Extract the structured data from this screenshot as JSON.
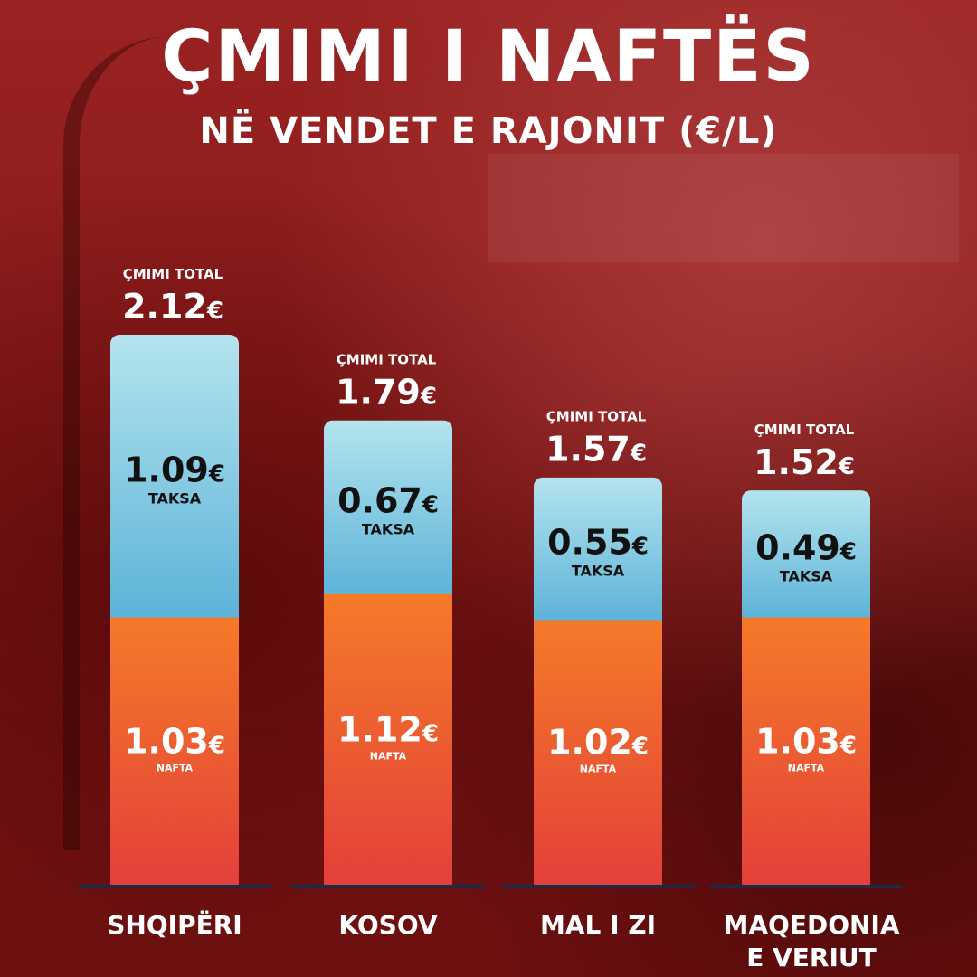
{
  "header": {
    "title": "ÇMIMI I NAFTËS",
    "subtitle": "NË VENDET E RAJONIT (€/L)"
  },
  "labels": {
    "total": "ÇMIMI TOTAL",
    "tax": "TAKSA",
    "fuel": "NAFTA",
    "currency": "€"
  },
  "colors": {
    "tax_top": "#b4e4ee",
    "tax_bottom": "#5cb3d8",
    "fuel_top": "#f57a28",
    "fuel_bottom": "#e3403a",
    "baseline": "#1c2a4a"
  },
  "chart_data": {
    "type": "bar",
    "stacked": true,
    "categories": [
      [
        "SHQIPËRI"
      ],
      [
        "KOSOV"
      ],
      [
        "MAL I ZI"
      ],
      [
        "MAQEDONIA",
        "E VERIUT"
      ]
    ],
    "series": [
      {
        "name": "NAFTA",
        "values": [
          1.03,
          1.12,
          1.02,
          1.03
        ]
      },
      {
        "name": "TAKSA",
        "values": [
          1.09,
          0.67,
          0.55,
          0.49
        ]
      }
    ],
    "totals": [
      2.12,
      1.79,
      1.57,
      1.52
    ],
    "value_labels": {
      "fuel": [
        "1.03",
        "1.12",
        "1.02",
        "1.03"
      ],
      "tax": [
        "1.09",
        "0.67",
        "0.55",
        "0.49"
      ],
      "total": [
        "2.12",
        "1.79",
        "1.57",
        "1.52"
      ]
    },
    "title": "ÇMIMI I NAFTËS",
    "subtitle": "NË VENDET E RAJONIT (€/L)",
    "xlabel": "",
    "ylabel": "",
    "ylim": [
      0,
      2.12
    ],
    "grid": false,
    "legend": "none"
  }
}
